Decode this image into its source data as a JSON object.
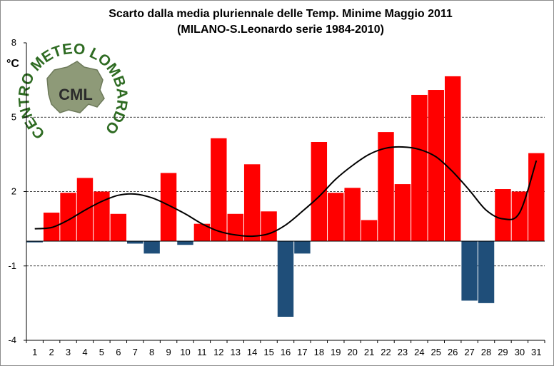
{
  "chart_data": {
    "type": "bar",
    "title_line1": "Scarto dalla media pluriennale delle Temp. Minime Maggio 2011",
    "title_line2": "(MILANO-S.Leonardo serie 1984-2010)",
    "ylabel": "°C",
    "xlabel": "",
    "ylim": [
      -4,
      8
    ],
    "yticks": [
      8,
      5,
      2,
      -1,
      -4
    ],
    "gridlines": [
      5,
      2,
      -1
    ],
    "categories": [
      "1",
      "2",
      "3",
      "4",
      "5",
      "6",
      "7",
      "8",
      "9",
      "10",
      "11",
      "12",
      "13",
      "14",
      "15",
      "16",
      "17",
      "18",
      "19",
      "20",
      "21",
      "22",
      "23",
      "24",
      "25",
      "26",
      "27",
      "28",
      "29",
      "30",
      "31"
    ],
    "values": [
      -0.05,
      1.15,
      1.95,
      2.55,
      2.0,
      1.1,
      -0.1,
      -0.5,
      2.75,
      -0.15,
      0.7,
      4.15,
      1.1,
      3.1,
      1.2,
      -3.05,
      -0.5,
      4.0,
      1.95,
      2.15,
      0.85,
      4.4,
      2.3,
      5.9,
      6.1,
      6.65,
      -2.4,
      -2.5,
      2.1,
      2.0,
      3.55
    ],
    "trend_values": [
      0.5,
      0.55,
      0.85,
      1.25,
      1.6,
      1.85,
      1.9,
      1.75,
      1.45,
      1.1,
      0.7,
      0.4,
      0.25,
      0.2,
      0.3,
      0.65,
      1.2,
      1.8,
      2.5,
      3.05,
      3.5,
      3.75,
      3.8,
      3.7,
      3.4,
      2.8,
      2.05,
      1.25,
      0.9,
      1.15,
      3.25
    ],
    "colors": {
      "positive": "#ff0000",
      "negative": "#1f4e79",
      "trend": "#000000",
      "grid": "#000000",
      "logo_green": "#2e6b22"
    },
    "grid": true,
    "legend": "none"
  },
  "logo": {
    "ring_text": "CENTRO METEO LOMBARDO",
    "core_text": "CML"
  }
}
